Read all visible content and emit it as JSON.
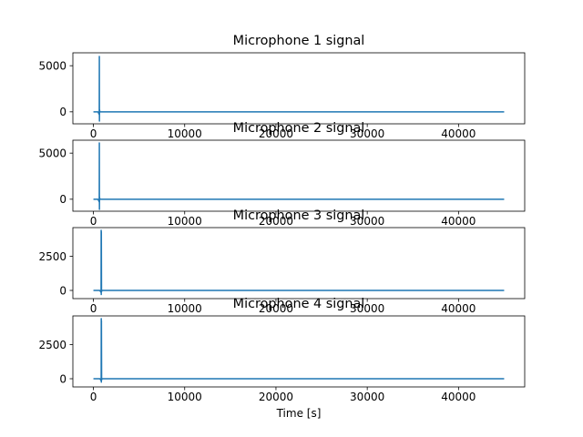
{
  "chart_data": [
    {
      "type": "line",
      "title": "Microphone 1 signal",
      "xlabel": "",
      "ylabel": "",
      "xlim": [
        -2250,
        47250
      ],
      "ylim": [
        -1300,
        6400
      ],
      "xticks": [
        0,
        10000,
        20000,
        30000,
        40000
      ],
      "yticks": [
        0,
        5000
      ],
      "grid": false,
      "series": [
        {
          "color": "#1f77b4",
          "x": [
            0,
            500,
            640,
            650,
            660,
            670,
            700,
            750,
            1000,
            45000
          ],
          "y": [
            0,
            0,
            -300,
            6000,
            -1000,
            250,
            0,
            0,
            0,
            0
          ]
        }
      ]
    },
    {
      "type": "line",
      "title": "Microphone 2 signal",
      "xlabel": "",
      "ylabel": "",
      "xlim": [
        -2250,
        47250
      ],
      "ylim": [
        -1300,
        6400
      ],
      "xticks": [
        0,
        10000,
        20000,
        30000,
        40000
      ],
      "yticks": [
        0,
        5000
      ],
      "grid": false,
      "series": [
        {
          "color": "#1f77b4",
          "x": [
            0,
            500,
            640,
            650,
            660,
            670,
            700,
            750,
            1000,
            45000
          ],
          "y": [
            0,
            0,
            -300,
            6100,
            -1100,
            250,
            0,
            0,
            0,
            0
          ]
        }
      ]
    },
    {
      "type": "line",
      "title": "Microphone 3 signal",
      "xlabel": "",
      "ylabel": "",
      "xlim": [
        -2250,
        47250
      ],
      "ylim": [
        -600,
        4600
      ],
      "xticks": [
        0,
        10000,
        20000,
        30000,
        40000
      ],
      "yticks": [
        0,
        2500
      ],
      "grid": false,
      "series": [
        {
          "color": "#1f77b4",
          "x": [
            0,
            700,
            840,
            850,
            860,
            870,
            890,
            920,
            1000,
            45000
          ],
          "y": [
            0,
            0,
            -150,
            4400,
            -300,
            4300,
            -100,
            0,
            0,
            0
          ]
        }
      ]
    },
    {
      "type": "line",
      "title": "Microphone 4 signal",
      "xlabel": "Time [s]",
      "ylabel": "",
      "xlim": [
        -2250,
        47250
      ],
      "ylim": [
        -600,
        4600
      ],
      "xticks": [
        0,
        10000,
        20000,
        30000,
        40000
      ],
      "yticks": [
        0,
        2500
      ],
      "grid": false,
      "series": [
        {
          "color": "#1f77b4",
          "x": [
            0,
            720,
            850,
            860,
            870,
            880,
            900,
            930,
            1000,
            45000
          ],
          "y": [
            0,
            0,
            -150,
            4400,
            -250,
            4250,
            -100,
            0,
            0,
            0
          ]
        }
      ]
    }
  ]
}
